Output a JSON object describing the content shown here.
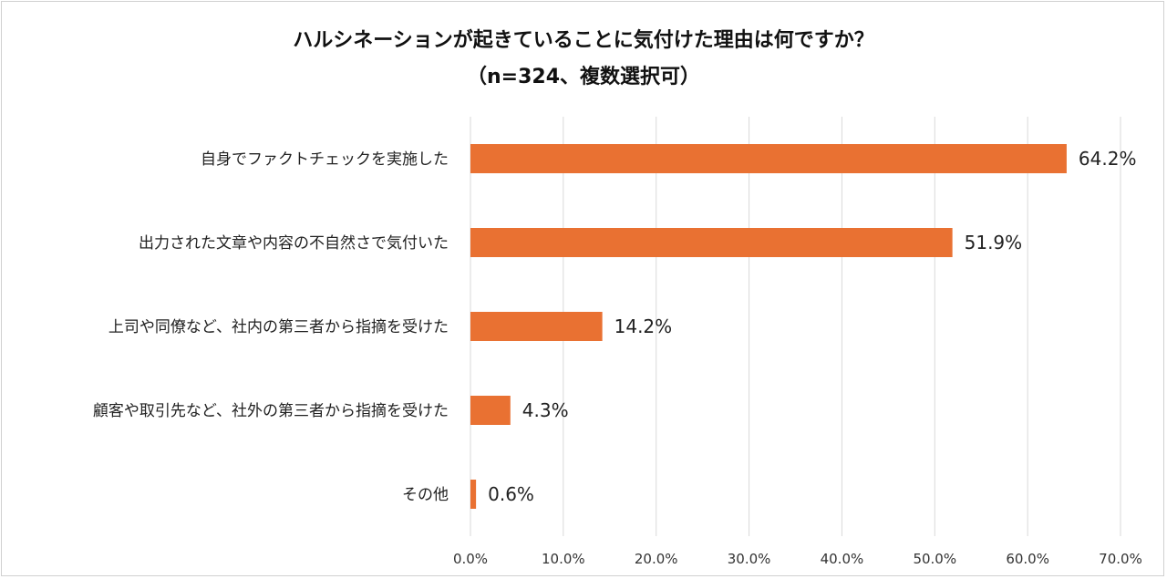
{
  "chart_data": {
    "type": "bar",
    "orientation": "horizontal",
    "title": "ハルシネーションが起きていることに気付けた理由は何ですか？",
    "subtitle": "（n=324、複数選択可）",
    "categories": [
      "自身でファクトチェックを実施した",
      "出力された文章や内容の不自然さで気付いた",
      "上司や同僚など、社内の第三者から指摘を受けた",
      "顧客や取引先など、社外の第三者から指摘を受けた",
      "その他"
    ],
    "values": [
      64.2,
      51.9,
      14.2,
      4.3,
      0.6
    ],
    "value_labels": [
      "64.2%",
      "51.9%",
      "14.2%",
      "4.3%",
      "0.6%"
    ],
    "xlim": [
      0,
      70
    ],
    "ticks": [
      "0.0%",
      "10.0%",
      "20.0%",
      "30.0%",
      "40.0%",
      "50.0%",
      "60.0%",
      "70.0%"
    ],
    "grid": true,
    "colors": {
      "bar": "#E97132",
      "grid": "#d9d9d9"
    }
  }
}
